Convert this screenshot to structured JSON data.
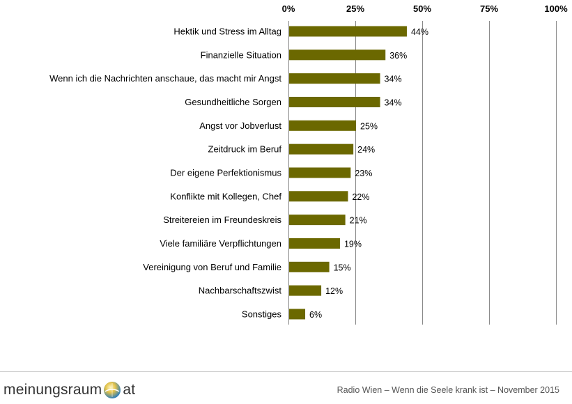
{
  "chart_data": {
    "type": "bar",
    "orientation": "horizontal",
    "categories": [
      "Hektik und Stress im Alltag",
      "Finanzielle Situation",
      "Wenn ich die Nachrichten anschaue, das macht mir Angst",
      "Gesundheitliche Sorgen",
      "Angst vor Jobverlust",
      "Zeitdruck im Beruf",
      "Der eigene Perfektionismus",
      "Konflikte mit Kollegen, Chef",
      "Streitereien im Freundeskreis",
      "Viele familiäre Verpflichtungen",
      "Vereinigung von Beruf und Familie",
      "Nachbarschaftszwist",
      "Sonstiges"
    ],
    "values": [
      44,
      36,
      34,
      34,
      25,
      24,
      23,
      22,
      21,
      19,
      15,
      12,
      6
    ],
    "value_labels": [
      "44%",
      "36%",
      "34%",
      "34%",
      "25%",
      "24%",
      "23%",
      "22%",
      "21%",
      "19%",
      "15%",
      "12%",
      "6%"
    ],
    "xlim": [
      0,
      100
    ],
    "xticks": [
      0,
      25,
      50,
      75,
      100
    ],
    "xtick_labels": [
      "0%",
      "25%",
      "50%",
      "75%",
      "100%"
    ],
    "x_axis_position": "top",
    "grid": true,
    "bar_color": "#6b6800",
    "grid_color": "#8a8a8a"
  },
  "footer": {
    "logo_left": "meinungsraum",
    "logo_right": "at",
    "caption": "Radio Wien – Wenn die Seele krank ist – November 2015"
  }
}
